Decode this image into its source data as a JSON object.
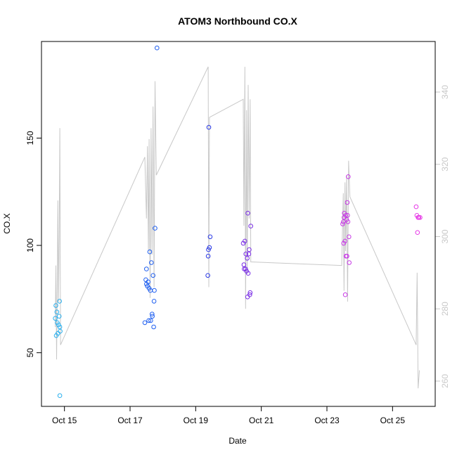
{
  "chart_data": {
    "type": "scatter",
    "title": "ATOM3 Northbound CO.X",
    "xlabel": "Date",
    "ylabel": "CO.X",
    "xlim": [
      14.3,
      26.3
    ],
    "ylim": [
      25,
      195
    ],
    "y2lim": [
      253,
      354
    ],
    "x_ticks": [
      15,
      17,
      19,
      21,
      23,
      25
    ],
    "x_tick_labels": [
      "Oct 15",
      "Oct 17",
      "Oct 19",
      "Oct 21",
      "Oct 23",
      "Oct 25"
    ],
    "y_ticks": [
      50,
      100,
      150
    ],
    "y2_ticks": [
      260,
      280,
      300,
      320,
      340
    ],
    "grid": false,
    "colors": {
      "frame": "#000000",
      "secondary_line": "#c8c8c8"
    },
    "series": [
      {
        "axis": "left",
        "points": [
          {
            "x": 14.72,
            "y": 66,
            "color": "#2ab0ee"
          },
          {
            "x": 14.74,
            "y": 72,
            "color": "#2ab0ee"
          },
          {
            "x": 14.75,
            "y": 58,
            "color": "#2ab0ee"
          },
          {
            "x": 14.77,
            "y": 69,
            "color": "#2ab0ee"
          },
          {
            "x": 14.78,
            "y": 64,
            "color": "#2ab0ee"
          },
          {
            "x": 14.8,
            "y": 59,
            "color": "#2ab0ee"
          },
          {
            "x": 14.82,
            "y": 63,
            "color": "#2ab0ee"
          },
          {
            "x": 14.84,
            "y": 67,
            "color": "#2ab0ee"
          },
          {
            "x": 14.85,
            "y": 74,
            "color": "#2ab0ee"
          },
          {
            "x": 14.86,
            "y": 62,
            "color": "#2ab0ee"
          },
          {
            "x": 14.87,
            "y": 60,
            "color": "#2ab0ee"
          },
          {
            "x": 14.86,
            "y": 30,
            "color": "#2ab0ee"
          },
          {
            "x": 17.45,
            "y": 64,
            "color": "#1f5ff0"
          },
          {
            "x": 17.48,
            "y": 84,
            "color": "#1f5ff0"
          },
          {
            "x": 17.5,
            "y": 89,
            "color": "#1f5ff0"
          },
          {
            "x": 17.5,
            "y": 82,
            "color": "#1f5ff0"
          },
          {
            "x": 17.53,
            "y": 81,
            "color": "#1f5ff0"
          },
          {
            "x": 17.55,
            "y": 83,
            "color": "#1f5ff0"
          },
          {
            "x": 17.57,
            "y": 65,
            "color": "#1f5ff0"
          },
          {
            "x": 17.58,
            "y": 80,
            "color": "#1f5ff0"
          },
          {
            "x": 17.6,
            "y": 97,
            "color": "#1f5ff0"
          },
          {
            "x": 17.62,
            "y": 79,
            "color": "#1f5ff0"
          },
          {
            "x": 17.63,
            "y": 65,
            "color": "#1f5ff0"
          },
          {
            "x": 17.65,
            "y": 92,
            "color": "#1f5ff0"
          },
          {
            "x": 17.67,
            "y": 68,
            "color": "#1f5ff0"
          },
          {
            "x": 17.68,
            "y": 67,
            "color": "#1f5ff0"
          },
          {
            "x": 17.7,
            "y": 86,
            "color": "#1f5ff0"
          },
          {
            "x": 17.72,
            "y": 62,
            "color": "#1f5ff0"
          },
          {
            "x": 17.73,
            "y": 74,
            "color": "#1f5ff0"
          },
          {
            "x": 17.74,
            "y": 79,
            "color": "#1f5ff0"
          },
          {
            "x": 17.76,
            "y": 108,
            "color": "#1f5ff0"
          },
          {
            "x": 17.82,
            "y": 192,
            "color": "#1f5ff0"
          },
          {
            "x": 19.37,
            "y": 86,
            "color": "#2b3ae6"
          },
          {
            "x": 19.38,
            "y": 95,
            "color": "#2b3ae6"
          },
          {
            "x": 19.39,
            "y": 98,
            "color": "#2b3ae6"
          },
          {
            "x": 19.4,
            "y": 155,
            "color": "#2b3ae6"
          },
          {
            "x": 19.42,
            "y": 99,
            "color": "#2b3ae6"
          },
          {
            "x": 19.44,
            "y": 104,
            "color": "#2b3ae6"
          },
          {
            "x": 20.45,
            "y": 101,
            "color": "#7a2ee6"
          },
          {
            "x": 20.47,
            "y": 91,
            "color": "#7a2ee6"
          },
          {
            "x": 20.48,
            "y": 89,
            "color": "#7a2ee6"
          },
          {
            "x": 20.5,
            "y": 102,
            "color": "#7a2ee6"
          },
          {
            "x": 20.52,
            "y": 89,
            "color": "#7a2ee6"
          },
          {
            "x": 20.53,
            "y": 96,
            "color": "#7a2ee6"
          },
          {
            "x": 20.55,
            "y": 88,
            "color": "#7a2ee6"
          },
          {
            "x": 20.57,
            "y": 94,
            "color": "#7a2ee6"
          },
          {
            "x": 20.58,
            "y": 76,
            "color": "#7a2ee6"
          },
          {
            "x": 20.59,
            "y": 115,
            "color": "#7a2ee6"
          },
          {
            "x": 20.6,
            "y": 87,
            "color": "#7a2ee6"
          },
          {
            "x": 20.62,
            "y": 96,
            "color": "#7a2ee6"
          },
          {
            "x": 20.63,
            "y": 98,
            "color": "#7a2ee6"
          },
          {
            "x": 20.65,
            "y": 77,
            "color": "#7a2ee6"
          },
          {
            "x": 20.66,
            "y": 78,
            "color": "#7a2ee6"
          },
          {
            "x": 20.68,
            "y": 109,
            "color": "#7a2ee6"
          },
          {
            "x": 23.48,
            "y": 110,
            "color": "#c83ae6"
          },
          {
            "x": 23.5,
            "y": 111,
            "color": "#c83ae6"
          },
          {
            "x": 23.51,
            "y": 101,
            "color": "#c83ae6"
          },
          {
            "x": 23.52,
            "y": 113,
            "color": "#c83ae6"
          },
          {
            "x": 23.53,
            "y": 115,
            "color": "#c83ae6"
          },
          {
            "x": 23.55,
            "y": 102,
            "color": "#c83ae6"
          },
          {
            "x": 23.56,
            "y": 77,
            "color": "#c83ae6"
          },
          {
            "x": 23.57,
            "y": 114,
            "color": "#c83ae6"
          },
          {
            "x": 23.58,
            "y": 95,
            "color": "#c83ae6"
          },
          {
            "x": 23.6,
            "y": 112,
            "color": "#c83ae6"
          },
          {
            "x": 23.61,
            "y": 95,
            "color": "#c83ae6"
          },
          {
            "x": 23.62,
            "y": 120,
            "color": "#c83ae6"
          },
          {
            "x": 23.63,
            "y": 114,
            "color": "#c83ae6"
          },
          {
            "x": 23.64,
            "y": 111,
            "color": "#c83ae6"
          },
          {
            "x": 23.65,
            "y": 132,
            "color": "#c83ae6"
          },
          {
            "x": 23.67,
            "y": 104,
            "color": "#c83ae6"
          },
          {
            "x": 23.68,
            "y": 92,
            "color": "#c83ae6"
          },
          {
            "x": 25.72,
            "y": 118,
            "color": "#e63ae6"
          },
          {
            "x": 25.74,
            "y": 114,
            "color": "#e63ae6"
          },
          {
            "x": 25.76,
            "y": 106,
            "color": "#e63ae6"
          },
          {
            "x": 25.78,
            "y": 113,
            "color": "#e63ae6"
          },
          {
            "x": 25.8,
            "y": 113,
            "color": "#e63ae6"
          },
          {
            "x": 25.84,
            "y": 113,
            "color": "#e63ae6"
          }
        ]
      },
      {
        "axis": "right",
        "type": "line",
        "color": "#c8c8c8",
        "x": [
          14.72,
          14.74,
          14.76,
          14.78,
          14.8,
          14.82,
          14.84,
          14.86,
          14.88,
          17.45,
          17.5,
          17.53,
          17.56,
          17.58,
          17.61,
          17.64,
          17.67,
          17.7,
          17.73,
          17.76,
          17.8,
          19.38,
          19.4,
          19.42,
          20.45,
          20.47,
          20.5,
          20.52,
          20.55,
          20.57,
          20.6,
          20.63,
          20.66,
          20.68,
          23.45,
          23.47,
          23.5,
          23.52,
          23.55,
          23.57,
          23.6,
          23.63,
          23.66,
          23.7,
          25.72,
          25.75,
          25.78,
          25.82
        ],
        "y": [
          275,
          292,
          266,
          285,
          310,
          282,
          300,
          330,
          270,
          322,
          305,
          325,
          296,
          327,
          283,
          330,
          295,
          336,
          286,
          343,
          317,
          347,
          286,
          333,
          338,
          303,
          347,
          280,
          335,
          290,
          342,
          305,
          338,
          293,
          292,
          300,
          312,
          285,
          315,
          296,
          317,
          282,
          321,
          311,
          270,
          290,
          258,
          263
        ]
      }
    ]
  }
}
